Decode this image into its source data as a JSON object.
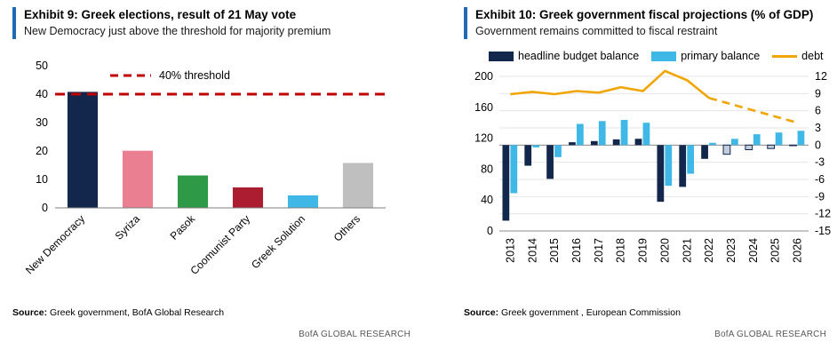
{
  "colors": {
    "accent_blue": "#2368B2",
    "navy": "#13264B",
    "light_blue": "#3FB8E8",
    "orange": "#F0A500",
    "threshold_red": "#C00000"
  },
  "left_panel": {
    "title": "Exhibit 9: Greek elections, result of 21 May vote",
    "subtitle": "New Democracy just above the threshold for majority premium",
    "source_label": "Source:",
    "source_text": " Greek government, BofA Global Research",
    "footer_brand": "BofA GLOBAL RESEARCH"
  },
  "right_panel": {
    "title": "Exhibit 10: Greek government fiscal projections (% of GDP)",
    "subtitle": "Government remains committed to fiscal restraint",
    "source_label": "Source:",
    "source_text": " Greek government , European Commission",
    "footer_brand": "BofA GLOBAL RESEARCH"
  },
  "chart_data": [
    {
      "type": "bar",
      "title": "Exhibit 9: Greek elections, result of 21 May vote",
      "categories": [
        "New Democracy",
        "Syriza",
        "Pasok",
        "Coomunist Party",
        "Greek Solution",
        "Others"
      ],
      "values": [
        40.8,
        20.1,
        11.4,
        7.2,
        4.4,
        15.8
      ],
      "bar_colors": [
        "#13264B",
        "#E97F90",
        "#2E9A47",
        "#AD1D32",
        "#3FB8E8",
        "#BFBFBF"
      ],
      "ylim": [
        0,
        50
      ],
      "yticks": [
        0,
        10,
        20,
        30,
        40,
        50
      ],
      "threshold": {
        "value": 40,
        "label": "40% threshold",
        "color": "#C00000"
      },
      "grid": false,
      "legend_position": "top-inside"
    },
    {
      "type": "bar+line",
      "title": "Exhibit 10: Greek government fiscal projections (% of GDP)",
      "categories": [
        "2013",
        "2014",
        "2015",
        "2016",
        "2017",
        "2018",
        "2019",
        "2020",
        "2021",
        "2022",
        "2023",
        "2024",
        "2025",
        "2026"
      ],
      "series": [
        {
          "name": "headline budget balance",
          "chart": "bar",
          "axis": "right",
          "color": "#13264B",
          "projected_from": "2023",
          "projected_fill": "#C3CDDC",
          "values": [
            -13.2,
            -3.6,
            -5.9,
            0.5,
            0.7,
            1.0,
            1.1,
            -9.9,
            -7.3,
            -2.4,
            -1.6,
            -0.8,
            -0.6,
            -0.1
          ]
        },
        {
          "name": "primary balance",
          "chart": "bar",
          "axis": "right",
          "color": "#3FB8E8",
          "values": [
            -8.4,
            -0.4,
            -2.1,
            3.7,
            4.2,
            4.4,
            3.9,
            -7.1,
            -5.0,
            0.4,
            1.1,
            1.9,
            2.2,
            2.5
          ]
        },
        {
          "name": "debt",
          "chart": "line",
          "axis": "left",
          "color": "#F0A500",
          "dashed_from": "2022",
          "values": [
            177,
            180,
            177,
            181,
            179,
            186,
            181,
            207,
            195,
            172,
            164,
            156,
            148,
            140
          ]
        }
      ],
      "left_axis": {
        "lim": [
          0,
          200
        ],
        "ticks": [
          0,
          40,
          80,
          120,
          160,
          200
        ]
      },
      "right_axis": {
        "lim": [
          -15,
          12
        ],
        "ticks": [
          -15,
          -12,
          -9,
          -6,
          -3,
          0,
          3,
          6,
          9,
          12
        ]
      },
      "grid": true,
      "legend_position": "top"
    }
  ]
}
